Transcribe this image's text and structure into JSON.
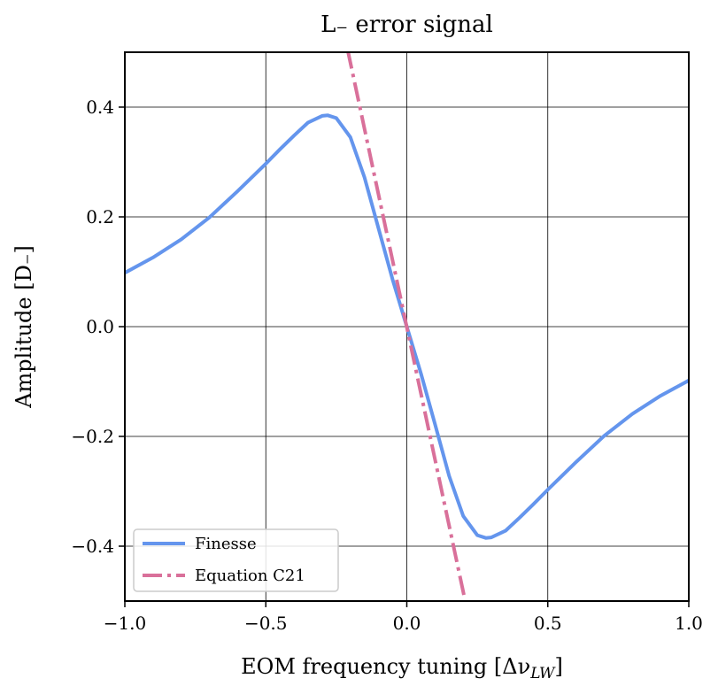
{
  "chart_data": {
    "type": "line",
    "title": "L₋ error signal",
    "xlabel": "EOM frequency tuning [Δν",
    "xlabel_sub": "LW",
    "xlabel_end": "]",
    "ylabel": "Amplitude [D₋]",
    "xlim": [
      -1.0,
      1.0
    ],
    "ylim": [
      -0.5,
      0.5
    ],
    "grid": true,
    "legend_position": "lower-left",
    "xticks": [
      {
        "value": -1.0,
        "label": "−1.0"
      },
      {
        "value": -0.5,
        "label": "−0.5"
      },
      {
        "value": 0.0,
        "label": "0.0"
      },
      {
        "value": 0.5,
        "label": "0.5"
      },
      {
        "value": 1.0,
        "label": "1.0"
      }
    ],
    "yticks": [
      {
        "value": 0.4,
        "label": "0.4"
      },
      {
        "value": 0.2,
        "label": "0.2"
      },
      {
        "value": 0.0,
        "label": "0.0"
      },
      {
        "value": -0.2,
        "label": "−0.2"
      },
      {
        "value": -0.4,
        "label": "−0.4"
      }
    ],
    "series": [
      {
        "name": "Finesse",
        "style": "solid",
        "color": "#6495ED",
        "x": [
          -1.0,
          -0.9,
          -0.8,
          -0.7,
          -0.6,
          -0.5,
          -0.45,
          -0.4,
          -0.35,
          -0.3,
          -0.28,
          -0.25,
          -0.2,
          -0.15,
          -0.1,
          -0.05,
          0.0,
          0.05,
          0.1,
          0.15,
          0.2,
          0.25,
          0.28,
          0.3,
          0.35,
          0.4,
          0.45,
          0.5,
          0.6,
          0.7,
          0.8,
          0.9,
          1.0
        ],
        "y": [
          0.098,
          0.126,
          0.159,
          0.199,
          0.247,
          0.297,
          0.323,
          0.348,
          0.372,
          0.384,
          0.385,
          0.38,
          0.345,
          0.272,
          0.178,
          0.085,
          0.0,
          -0.085,
          -0.178,
          -0.272,
          -0.345,
          -0.38,
          -0.385,
          -0.384,
          -0.372,
          -0.348,
          -0.323,
          -0.297,
          -0.247,
          -0.199,
          -0.159,
          -0.126,
          -0.098
        ]
      },
      {
        "name": "Equation C21",
        "style": "dashdot",
        "color": "#D9709A",
        "x": [
          -0.21,
          0.205
        ],
        "y": [
          0.505,
          -0.495
        ]
      }
    ]
  }
}
